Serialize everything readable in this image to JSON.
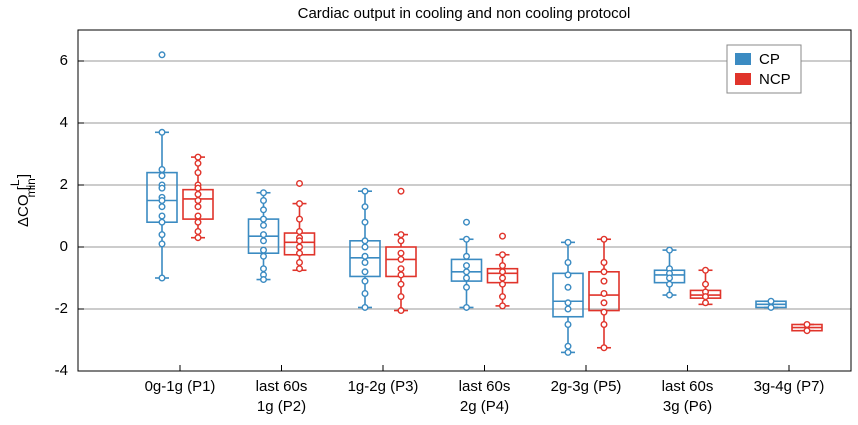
{
  "chart_data": {
    "type": "box",
    "title": "Cardiac output in cooling and non cooling protocol",
    "ylabel": {
      "prefix": "ΔCO [",
      "numerator": "L",
      "denominator": "min",
      "suffix": "]"
    },
    "categories": [
      [
        "0g-1g (P1)"
      ],
      [
        "last 60s",
        "1g (P2)"
      ],
      [
        "1g-2g (P3)"
      ],
      [
        "last 60s",
        "2g (P4)"
      ],
      [
        "2g-3g (P5)"
      ],
      [
        "last 60s",
        "3g (P6)"
      ],
      [
        "3g-4g (P7)"
      ]
    ],
    "ylim": [
      -4,
      7
    ],
    "yticks": [
      -4,
      -2,
      0,
      2,
      4,
      6
    ],
    "grid": true,
    "legend": "upper right",
    "series": [
      {
        "name": "CP",
        "color": "#3b8bc2",
        "whisker_low": [
          -1.0,
          -1.05,
          -1.95,
          -1.95,
          -3.4,
          -1.55,
          -1.95
        ],
        "q1": [
          0.8,
          -0.2,
          -0.95,
          -1.1,
          -2.25,
          -1.15,
          -1.95
        ],
        "median": [
          1.5,
          0.35,
          -0.35,
          -0.8,
          -1.75,
          -0.9,
          -1.85
        ],
        "q3": [
          2.4,
          0.9,
          0.2,
          -0.4,
          -0.85,
          -0.75,
          -1.75
        ],
        "whisker_high": [
          3.7,
          1.75,
          1.8,
          0.25,
          0.15,
          -0.1,
          -1.75
        ],
        "points": [
          [
            6.2,
            3.7,
            2.5,
            2.3,
            2.0,
            1.9,
            1.6,
            1.5,
            1.3,
            1.0,
            0.8,
            0.4,
            0.1,
            -1.0
          ],
          [
            1.75,
            1.5,
            1.2,
            0.9,
            0.7,
            0.4,
            0.2,
            -0.1,
            -0.3,
            -0.7,
            -0.9,
            -1.05
          ],
          [
            1.8,
            1.3,
            0.8,
            0.2,
            0,
            -0.3,
            -0.5,
            -0.8,
            -1.1,
            -1.5,
            -1.95
          ],
          [
            0.8,
            0.25,
            -0.3,
            -0.6,
            -0.8,
            -1.0,
            -1.3,
            -1.95
          ],
          [
            0.15,
            -0.5,
            -0.9,
            -1.3,
            -1.8,
            -2.0,
            -2.5,
            -3.2,
            -3.4
          ],
          [
            -0.1,
            -0.7,
            -0.85,
            -1.0,
            -1.2,
            -1.55
          ],
          [
            -1.75,
            -1.95
          ]
        ]
      },
      {
        "name": "NCP",
        "color": "#e0342b",
        "whisker_low": [
          0.3,
          -0.75,
          -2.05,
          -1.9,
          -3.25,
          -1.85,
          -2.7
        ],
        "q1": [
          0.9,
          -0.25,
          -0.95,
          -1.15,
          -2.05,
          -1.65,
          -2.7
        ],
        "median": [
          1.55,
          0.15,
          -0.4,
          -0.85,
          -1.55,
          -1.55,
          -2.6
        ],
        "q3": [
          1.85,
          0.45,
          0.0,
          -0.7,
          -0.8,
          -1.4,
          -2.5
        ],
        "whisker_high": [
          2.9,
          1.4,
          0.4,
          -0.25,
          0.25,
          -0.75,
          -2.5
        ],
        "points": [
          [
            2.9,
            2.7,
            2.4,
            2.0,
            1.9,
            1.7,
            1.5,
            1.3,
            1.0,
            0.8,
            0.5,
            0.3
          ],
          [
            2.05,
            1.4,
            0.9,
            0.5,
            0.3,
            0.2,
            0.0,
            -0.2,
            -0.5,
            -0.7
          ],
          [
            1.8,
            0.4,
            0.2,
            -0.2,
            -0.4,
            -0.7,
            -0.9,
            -1.2,
            -1.6,
            -2.05
          ],
          [
            0.35,
            -0.25,
            -0.6,
            -0.8,
            -1.0,
            -1.2,
            -1.6,
            -1.9
          ],
          [
            0.25,
            -0.5,
            -0.8,
            -1.1,
            -1.5,
            -1.8,
            -2.1,
            -2.5,
            -3.25
          ],
          [
            -0.75,
            -1.2,
            -1.45,
            -1.6,
            -1.8
          ],
          [
            -2.5,
            -2.7
          ]
        ]
      }
    ]
  }
}
